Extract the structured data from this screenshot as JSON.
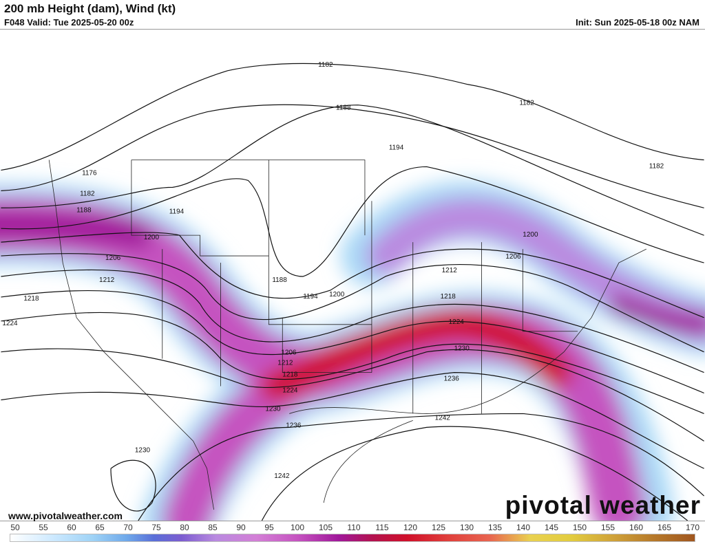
{
  "header": {
    "title": "200 mb Height (dam), Wind (kt)",
    "valid": "F048 Valid: Tue 2025-05-20 00z",
    "init": "Init: Sun 2025-05-18 00z NAM"
  },
  "map": {
    "contour_labels": [
      "1182",
      "1182",
      "1176",
      "1182",
      "1188",
      "1188",
      "1194",
      "1194",
      "1200",
      "1200",
      "1206",
      "1206",
      "1212",
      "1212",
      "1218",
      "1218",
      "1224",
      "1224",
      "1230",
      "1230",
      "1236",
      "1236",
      "1242",
      "1242",
      "1188",
      "1194",
      "1200",
      "1182",
      "1206",
      "1212",
      "1218",
      "1224",
      "1230"
    ],
    "jet_colors": {
      "light": "#a8d8f6",
      "blue": "#5a6fd8",
      "pink": "#d37fd6",
      "magenta": "#a0189a",
      "red": "#d0102a"
    }
  },
  "footer": {
    "website": "www.pivotalweather.com",
    "brand": "pivotal weather"
  },
  "colorbar": {
    "unit": "kt",
    "ticks": [
      "50",
      "55",
      "60",
      "65",
      "70",
      "75",
      "80",
      "85",
      "90",
      "95",
      "100",
      "105",
      "110",
      "115",
      "120",
      "125",
      "130",
      "135",
      "140",
      "145",
      "150",
      "155",
      "160",
      "165",
      "170"
    ]
  }
}
